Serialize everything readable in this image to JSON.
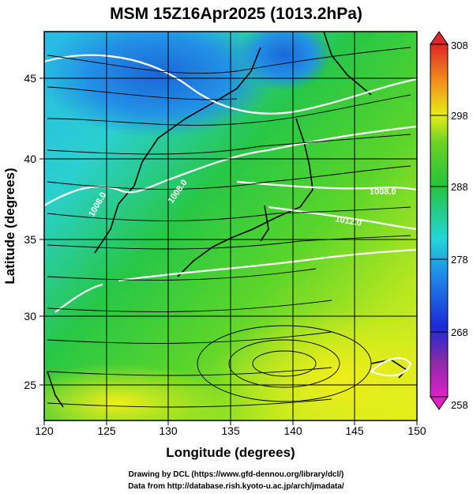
{
  "title": "MSM 15Z16Apr2025 (1013.2hPa)",
  "axes": {
    "xlabel": "Longitude (degrees)",
    "ylabel": "Latitude  (degrees)",
    "x_ticks": [
      "120",
      "125",
      "130",
      "135",
      "140",
      "145",
      "150"
    ],
    "y_ticks": [
      "25",
      "30",
      "35",
      "40",
      "45"
    ],
    "x_range": [
      120,
      150
    ],
    "y_range": [
      22.5,
      47.5
    ]
  },
  "colorbar": {
    "ticks": [
      "258",
      "268",
      "278",
      "288",
      "298",
      "308"
    ],
    "range": [
      258,
      308
    ]
  },
  "contour_labels": [
    "1008.0",
    "1012.0",
    "1008.0",
    "1008.0"
  ],
  "footer": {
    "line1": "Drawing by DCL (https://www.gfd-dennou.org/library/dcl/)",
    "line2": "Data from http://database.rish.kyoto-u.ac.jp/arch/jmadata/"
  },
  "colors": {
    "cold": "#1d7fe0",
    "cyan": "#22d8d8",
    "green": "#28c43a",
    "yellow": "#f0ee1a",
    "isobar": "#ffffff"
  }
}
